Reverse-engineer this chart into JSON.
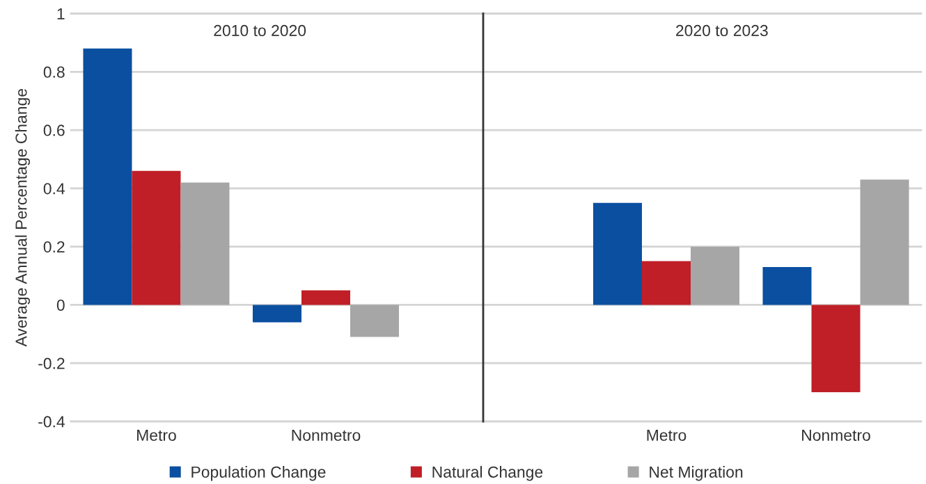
{
  "chart_data": [
    {
      "type": "bar",
      "title": "2010 to 2020",
      "ylabel": "Average Annual Percentage Change",
      "categories": [
        "Metro",
        "Nonmetro"
      ],
      "series": [
        {
          "name": "Population Change",
          "color": "#0a4fa0",
          "values": [
            0.88,
            -0.06
          ]
        },
        {
          "name": "Natural Change",
          "color": "#c01f27",
          "values": [
            0.46,
            0.05
          ]
        },
        {
          "name": "Net Migration",
          "color": "#a6a6a6",
          "values": [
            0.42,
            -0.11
          ]
        }
      ],
      "ylim": [
        -0.4,
        1
      ],
      "yticks": [
        -0.4,
        -0.2,
        0,
        0.2,
        0.4,
        0.6,
        0.8,
        1
      ],
      "grid": "y",
      "legend": "bottom"
    },
    {
      "type": "bar",
      "title": "2020 to 2023",
      "categories": [
        "Metro",
        "Nonmetro"
      ],
      "series": [
        {
          "color": "#0a4fa0",
          "values": [
            0.35,
            0.13
          ]
        },
        {
          "color": "#c01f27",
          "values": [
            0.15,
            -0.3
          ]
        },
        {
          "color": "#a6a6a6",
          "values": [
            0.2,
            0.43
          ]
        }
      ],
      "ylim": [
        -0.4,
        1
      ],
      "yticks": [
        -0.4,
        -0.2,
        0,
        0.2,
        0.4,
        0.6,
        0.8,
        1
      ],
      "grid": "y",
      "tick_labels": "x"
    }
  ]
}
